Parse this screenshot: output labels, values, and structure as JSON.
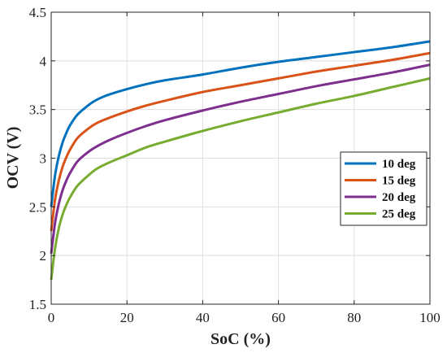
{
  "chart_data": {
    "type": "line",
    "title": "",
    "xlabel": "SoC (%)",
    "ylabel": "OCV (V)",
    "xlim": [
      0,
      100
    ],
    "ylim": [
      1.5,
      4.5
    ],
    "xticks": [
      0,
      20,
      40,
      60,
      80,
      100
    ],
    "yticks": [
      1.5,
      2,
      2.5,
      3,
      3.5,
      4,
      4.5
    ],
    "xtick_labels": [
      "0",
      "20",
      "40",
      "60",
      "80",
      "100"
    ],
    "ytick_labels": [
      "1.5",
      "2",
      "2.5",
      "3",
      "3.5",
      "4",
      "4.5"
    ],
    "grid": true,
    "legend_position": "right-middle",
    "x": [
      0,
      1,
      2,
      3,
      4,
      5,
      7,
      10,
      12,
      15,
      20,
      25,
      30,
      40,
      50,
      60,
      70,
      80,
      90,
      100
    ],
    "series": [
      {
        "name": "10 deg",
        "color": "#0072BD",
        "values": [
          2.5,
          2.82,
          3.02,
          3.16,
          3.26,
          3.34,
          3.45,
          3.55,
          3.6,
          3.65,
          3.71,
          3.76,
          3.8,
          3.86,
          3.93,
          3.99,
          4.04,
          4.09,
          4.14,
          4.2
        ]
      },
      {
        "name": "15 deg",
        "color": "#D95319",
        "values": [
          2.25,
          2.57,
          2.77,
          2.91,
          3.01,
          3.09,
          3.21,
          3.31,
          3.36,
          3.41,
          3.48,
          3.54,
          3.59,
          3.68,
          3.75,
          3.82,
          3.89,
          3.95,
          4.01,
          4.08
        ]
      },
      {
        "name": "20 deg",
        "color": "#7E2F8E",
        "values": [
          2.02,
          2.33,
          2.53,
          2.67,
          2.77,
          2.85,
          2.97,
          3.07,
          3.12,
          3.18,
          3.26,
          3.33,
          3.39,
          3.49,
          3.58,
          3.66,
          3.74,
          3.81,
          3.88,
          3.96
        ]
      },
      {
        "name": "25 deg",
        "color": "#77AC30",
        "values": [
          1.75,
          2.07,
          2.28,
          2.42,
          2.52,
          2.6,
          2.72,
          2.83,
          2.89,
          2.95,
          3.03,
          3.11,
          3.17,
          3.28,
          3.38,
          3.47,
          3.56,
          3.64,
          3.73,
          3.82
        ]
      }
    ]
  }
}
